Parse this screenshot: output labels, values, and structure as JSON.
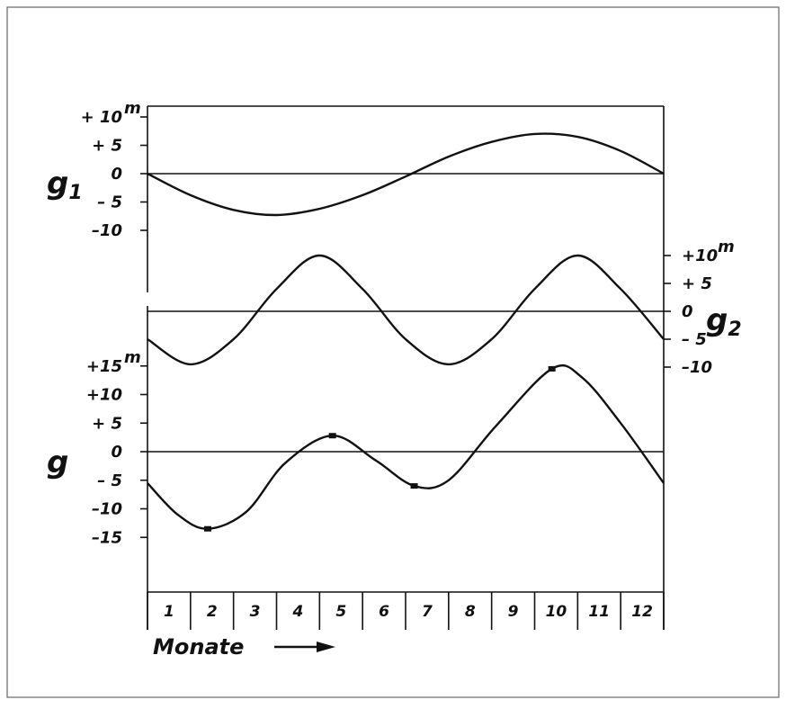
{
  "chart_data": {
    "type": "line",
    "xlabel": "Monate",
    "categories": [
      "1",
      "2",
      "3",
      "4",
      "5",
      "6",
      "7",
      "8",
      "9",
      "10",
      "11",
      "12"
    ],
    "panels": [
      {
        "name": "g1",
        "label": "g",
        "label_sub": "1",
        "axis_side": "left",
        "unit": "m",
        "ylim": [
          -10,
          10
        ],
        "ticks": [
          {
            "value": 10,
            "label": "+ 10"
          },
          {
            "value": 5,
            "label": "+ 5"
          },
          {
            "value": 0,
            "label": "0"
          },
          {
            "value": -5,
            "label": "– 5"
          },
          {
            "value": -10,
            "label": "–10"
          }
        ],
        "x": [
          0,
          1,
          2,
          3,
          4,
          5,
          6,
          7,
          8,
          9,
          10,
          11,
          12
        ],
        "values": [
          0,
          -3.8,
          -6.4,
          -7.3,
          -6.2,
          -3.8,
          -0.5,
          3.0,
          5.6,
          7.0,
          6.5,
          4.0,
          0
        ]
      },
      {
        "name": "g2",
        "label": "g",
        "label_sub": "2",
        "axis_side": "right",
        "unit": "m",
        "ylim": [
          -10,
          10
        ],
        "ticks": [
          {
            "value": 10,
            "label": "+10"
          },
          {
            "value": 5,
            "label": "+ 5"
          },
          {
            "value": 0,
            "label": "0"
          },
          {
            "value": -5,
            "label": "– 5"
          },
          {
            "value": -10,
            "label": "–10"
          }
        ],
        "x": [
          0,
          1,
          2,
          3,
          4,
          5,
          6,
          7,
          8,
          9,
          10,
          11,
          12
        ],
        "values": [
          -5,
          -9.5,
          -5,
          4,
          10,
          4,
          -5,
          -9.5,
          -5,
          4,
          10,
          4,
          -5
        ]
      },
      {
        "name": "g",
        "label": "g",
        "label_sub": "",
        "axis_side": "left",
        "unit": "m",
        "ylim": [
          -15,
          15
        ],
        "ticks": [
          {
            "value": 15,
            "label": "+15"
          },
          {
            "value": 10,
            "label": "+10"
          },
          {
            "value": 5,
            "label": "+ 5"
          },
          {
            "value": 0,
            "label": "0"
          },
          {
            "value": -5,
            "label": "– 5"
          },
          {
            "value": -10,
            "label": "–10"
          },
          {
            "value": -15,
            "label": "–15"
          }
        ],
        "x": [
          0,
          0.7,
          1.4,
          2.3,
          3.2,
          4.3,
          5.3,
          6.2,
          7.0,
          8.1,
          9.4,
          10.1,
          11.0,
          12.0
        ],
        "values": [
          -5.5,
          -11.0,
          -13.5,
          -10.5,
          -2.0,
          2.8,
          -1.5,
          -6.0,
          -5.0,
          4.5,
          14.5,
          13.0,
          5.0,
          -5.5
        ]
      }
    ]
  }
}
